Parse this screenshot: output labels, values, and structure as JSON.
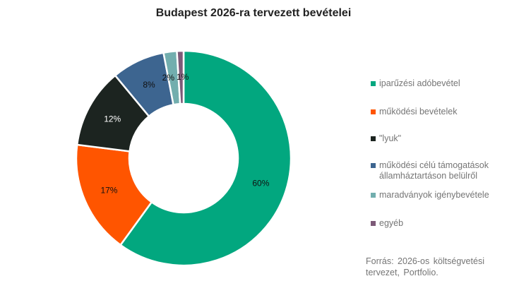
{
  "chart_data": {
    "type": "pie",
    "title": "Budapest 2026-ra tervezett bevételei",
    "categories": [
      "iparűzési adóbevétel",
      "működési bevételek",
      "\"lyuk\"",
      "működési célú támogatások államháztartáson belülről",
      "maradványok igénybevétele",
      "egyéb"
    ],
    "values": [
      60,
      17,
      12,
      8,
      2,
      1
    ],
    "labels": [
      "60%",
      "17%",
      "12%",
      "8%",
      "2%",
      "1%"
    ],
    "colors": [
      "#02a77f",
      "#ff5500",
      "#1c2420",
      "#3d6590",
      "#72aeae",
      "#7d5a78"
    ],
    "label_colors": [
      "#111",
      "#111",
      "#fff",
      "#111",
      "#111",
      "#111"
    ],
    "donut": true,
    "legend_position": "right",
    "source": "Forrás: 2026-os költségvetési tervezet, Portfolio."
  }
}
